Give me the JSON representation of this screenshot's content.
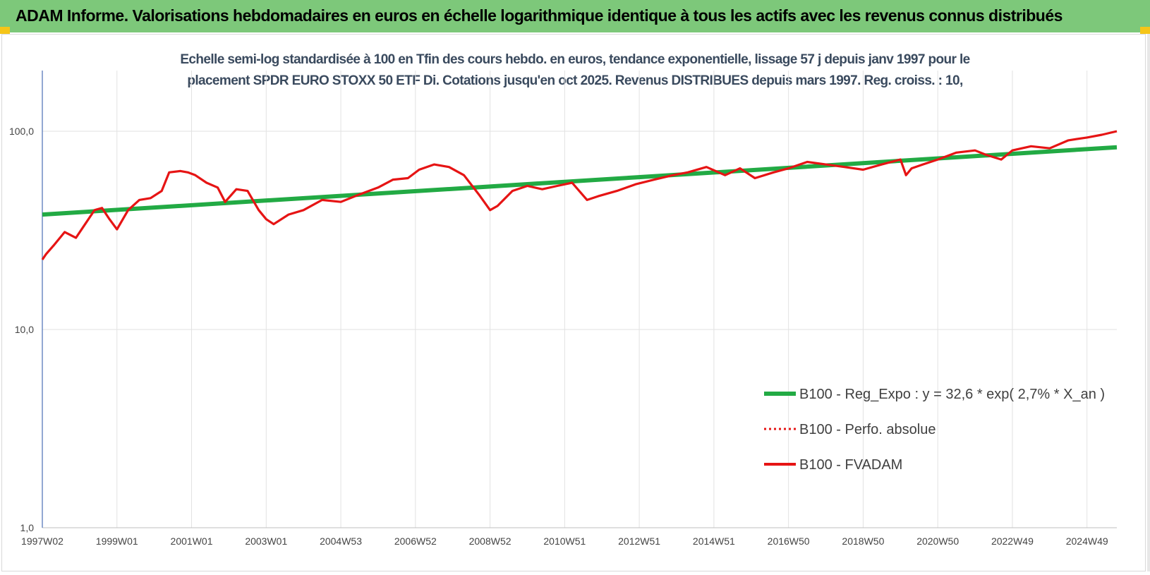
{
  "banner": {
    "title": "ADAM Informe. Valorisations hebdomadaires en euros en échelle logarithmique identique à tous les actifs avec les revenus connus distribués"
  },
  "colors": {
    "banner": "#7dc87a",
    "regression": "#22aa44",
    "fvadam": "#e61414",
    "perfo": "#e61414"
  },
  "chart_data": {
    "type": "line",
    "title_line1": "Echelle semi-log standardisée à 100 en Tfin des cours hebdo. en euros, tendance exponentielle, lissage 57 j depuis janv 1997 pour le",
    "title_line2": "placement SPDR EURO STOXX 50 ETF Di. Cotations jusqu'en oct 2025. Revenus DISTRIBUES depuis mars 1997. Reg. croiss. : 10,",
    "y_scale": "log",
    "ylim": [
      1,
      200
    ],
    "xlim": [
      1997.0,
      2025.8
    ],
    "y_ticks": [
      {
        "value": 1,
        "label": "1,0"
      },
      {
        "value": 10,
        "label": "10,0"
      },
      {
        "value": 100,
        "label": "100,0"
      }
    ],
    "x_ticks": [
      {
        "value": 1997.0,
        "label": "1997W02"
      },
      {
        "value": 1999.0,
        "label": "1999W01"
      },
      {
        "value": 2001.0,
        "label": "2001W01"
      },
      {
        "value": 2003.0,
        "label": "2003W01"
      },
      {
        "value": 2005.0,
        "label": "2004W53"
      },
      {
        "value": 2007.0,
        "label": "2006W52"
      },
      {
        "value": 2009.0,
        "label": "2008W52"
      },
      {
        "value": 2011.0,
        "label": "2010W51"
      },
      {
        "value": 2013.0,
        "label": "2012W51"
      },
      {
        "value": 2015.0,
        "label": "2014W51"
      },
      {
        "value": 2017.0,
        "label": "2016W50"
      },
      {
        "value": 2019.0,
        "label": "2018W50"
      },
      {
        "value": 2021.0,
        "label": "2020W50"
      },
      {
        "value": 2023.0,
        "label": "2022W49"
      },
      {
        "value": 2025.0,
        "label": "2024W49"
      }
    ],
    "grid": "vertical",
    "legend_position": "bottom-right",
    "series": [
      {
        "name": "B100 - Reg_Expo : y = 32,6 * exp( 2,7% *  X_an )",
        "style": "solid-thick",
        "x": [
          1997.0,
          2025.8
        ],
        "y": [
          38.0,
          83.0
        ]
      },
      {
        "name": "B100 - Perfo. absolue",
        "style": "dotted",
        "x": [],
        "y": []
      },
      {
        "name": "B100 - FVADAM",
        "style": "solid",
        "x": [
          1997.0,
          1997.1,
          1997.3,
          1997.6,
          1997.9,
          1998.1,
          1998.4,
          1998.6,
          1998.8,
          1999.0,
          1999.3,
          1999.6,
          1999.9,
          2000.2,
          2000.4,
          2000.7,
          2000.9,
          2001.1,
          2001.4,
          2001.7,
          2001.9,
          2002.2,
          2002.5,
          2002.8,
          2003.0,
          2003.2,
          2003.6,
          2004.0,
          2004.5,
          2005.0,
          2005.5,
          2006.0,
          2006.4,
          2006.8,
          2007.1,
          2007.5,
          2007.9,
          2008.3,
          2008.7,
          2009.0,
          2009.2,
          2009.6,
          2010.0,
          2010.4,
          2010.8,
          2011.2,
          2011.6,
          2011.9,
          2012.4,
          2012.9,
          2013.4,
          2013.9,
          2014.3,
          2014.8,
          2015.3,
          2015.7,
          2016.1,
          2016.6,
          2017.0,
          2017.5,
          2018.0,
          2018.5,
          2019.0,
          2019.5,
          2020.0,
          2020.15,
          2020.3,
          2020.6,
          2021.0,
          2021.5,
          2022.0,
          2022.3,
          2022.7,
          2023.0,
          2023.5,
          2024.0,
          2024.5,
          2025.0,
          2025.4,
          2025.8
        ],
        "y": [
          22.5,
          24.0,
          26.5,
          31.0,
          29.0,
          33.0,
          40.0,
          41.0,
          36.0,
          32.0,
          40.0,
          45.0,
          46.0,
          50.0,
          62.0,
          63.0,
          62.0,
          60.0,
          55.0,
          52.0,
          44.0,
          51.0,
          50.0,
          40.0,
          36.0,
          34.0,
          38.0,
          40.0,
          45.0,
          44.0,
          48.0,
          52.0,
          57.0,
          58.0,
          64.0,
          68.0,
          66.0,
          60.0,
          48.0,
          40.0,
          42.0,
          50.0,
          53.0,
          51.0,
          53.0,
          55.0,
          45.0,
          47.0,
          50.0,
          54.0,
          57.0,
          60.0,
          62.0,
          66.0,
          60.0,
          65.0,
          58.0,
          62.0,
          65.0,
          70.0,
          68.0,
          66.0,
          64.0,
          68.0,
          72.0,
          60.0,
          65.0,
          68.0,
          72.0,
          78.0,
          80.0,
          76.0,
          72.0,
          80.0,
          84.0,
          82.0,
          90.0,
          93.0,
          96.0,
          100.0
        ]
      }
    ]
  }
}
